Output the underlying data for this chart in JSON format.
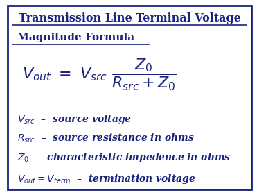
{
  "title_line1": "Transmission Line Terminal Voltage",
  "title_line2": "Magnitude Formula",
  "text_color": "#1a237e",
  "bg_color": "#ffffff",
  "border_color": "#1a237e",
  "definitions": [
    "$\\boldsymbol{V_{src}}$  –  source voltage",
    "$\\boldsymbol{R_{src}}$  –  source resistance in ohms",
    "$\\boldsymbol{Z_0}$  –  characteristic impedence in ohms",
    "$\\boldsymbol{V_{out} = V_{term}}$  –  termination voltage"
  ],
  "title_fontsize": 11.5,
  "subtitle_fontsize": 11.0,
  "formula_fontsize": 16,
  "def_fontsize": 10.0,
  "fig_width": 3.74,
  "fig_height": 2.81,
  "dpi": 100
}
